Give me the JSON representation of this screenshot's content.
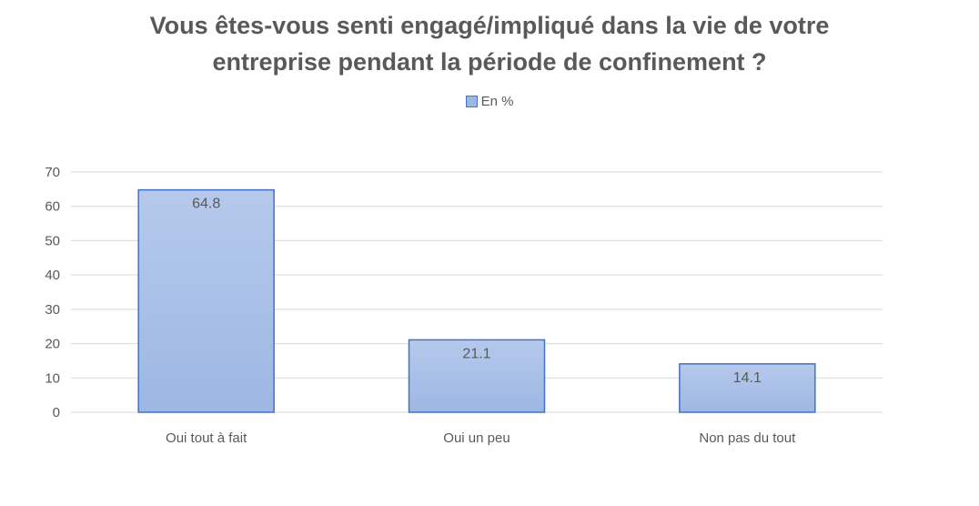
{
  "chart_data": {
    "type": "bar",
    "title_lines": [
      "Vous êtes-vous senti engagé/impliqué dans la vie de votre",
      "entreprise pendant la période de confinement ?"
    ],
    "legend": {
      "label": "En %",
      "position": "top"
    },
    "categories": [
      "Oui tout à fait",
      "Oui un peu",
      "Non pas du tout"
    ],
    "series": [
      {
        "name": "En %",
        "values": [
          64.8,
          21.1,
          14.1
        ],
        "data_labels": [
          "64.8",
          "21.1",
          "14.1"
        ]
      }
    ],
    "ylim": [
      0,
      70
    ],
    "yticks": [
      0,
      10,
      20,
      30,
      40,
      50,
      60,
      70
    ],
    "grid": true,
    "xlabel": "",
    "ylabel": ""
  },
  "colors": {
    "bar_fill_top": "#b6c9ec",
    "bar_fill_bottom": "#9db7e3",
    "bar_stroke": "#4472c4",
    "grid": "#d9d9d9",
    "text": "#595959"
  }
}
